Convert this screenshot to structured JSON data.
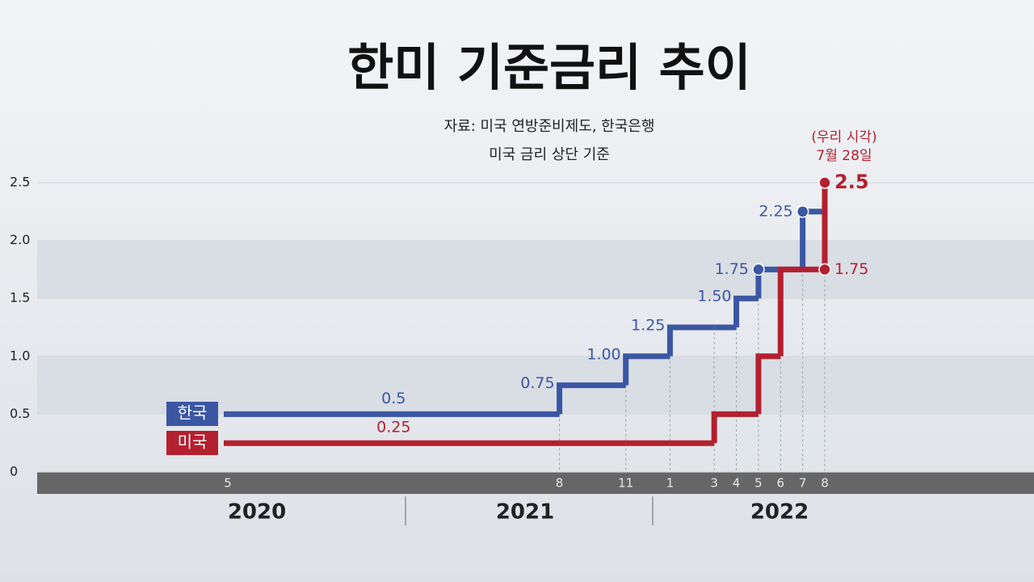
{
  "chart_data": {
    "type": "step",
    "title": "한미 기준금리 추이",
    "subtitle": [
      "자료: 미국 연방준비제도, 한국은행",
      "미국 금리 상단 기준"
    ],
    "annotation": [
      "(우리 시각)",
      "7월 28일"
    ],
    "x": [
      "2020-05",
      "2021-08",
      "2021-11",
      "2022-01",
      "2022-03",
      "2022-04",
      "2022-05",
      "2022-06",
      "2022-07",
      "2022-08"
    ],
    "xticks": [
      {
        "value": "2020-05",
        "label": "5"
      },
      {
        "value": "2021-08",
        "label": "8"
      },
      {
        "value": "2021-11",
        "label": "11"
      },
      {
        "value": "2022-01",
        "label": "1"
      },
      {
        "value": "2022-03",
        "label": "3"
      },
      {
        "value": "2022-04",
        "label": "4"
      },
      {
        "value": "2022-05",
        "label": "5"
      },
      {
        "value": "2022-06",
        "label": "6"
      },
      {
        "value": "2022-07",
        "label": "7"
      },
      {
        "value": "2022-08",
        "label": "8"
      }
    ],
    "years": [
      "2020",
      "2021",
      "2022"
    ],
    "ylim": [
      0,
      2.5
    ],
    "yticks": [
      0,
      0.5,
      {
        "value": 1,
        "label": "1.0"
      },
      1.5,
      {
        "value": 2,
        "label": "2.0"
      },
      2.5
    ],
    "series": [
      {
        "name": "한국",
        "color": "#3b57a3",
        "values": [
          0.5,
          0.75,
          1,
          1.25,
          1.25,
          1.5,
          1.75,
          1.75,
          2.25,
          2.25
        ],
        "value_labels": [
          "0.5",
          "0.75",
          "1.00",
          "1.25",
          null,
          "1.50",
          "1.75",
          null,
          "2.25",
          null
        ]
      },
      {
        "name": "미국",
        "color": "#b3202f",
        "values": [
          0.25,
          0.25,
          0.25,
          0.25,
          0.5,
          0.5,
          1,
          1.75,
          1.75,
          2.5
        ],
        "value_labels": [
          "0.25",
          null,
          null,
          null,
          null,
          null,
          null,
          null,
          "1.75",
          "2.5"
        ]
      }
    ]
  }
}
